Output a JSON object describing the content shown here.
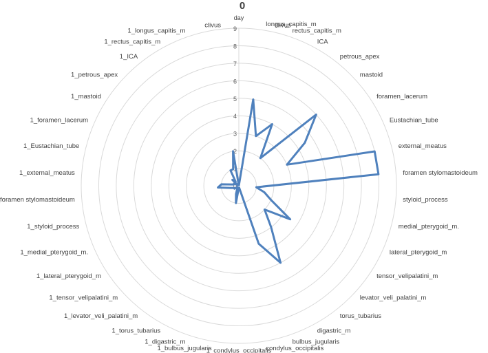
{
  "chart_data": {
    "type": "radar",
    "title": "0",
    "unit_label": "day",
    "rmax": 9,
    "ticks": [
      "0",
      "1",
      "2",
      "3",
      "4",
      "5",
      "6",
      "7",
      "8",
      "9"
    ],
    "categories": [
      "clivus",
      "longus_capitis_m",
      "rectus_capitis_m",
      "ICA",
      "petrous_apex",
      "mastoid",
      "foramen_lacerum",
      "Eustachian_tube",
      "external_meatus",
      "foramen stylomastoideum",
      "styloid_process",
      "medial_pterygoid_m.",
      "lateral_pterygoid_m",
      "tensor_velipalatini_m",
      "levator_veli_palatini_m",
      "torus_tubarius",
      "digastric_m",
      "bulbus_jugularis",
      "condylus_occipitalis",
      "1_condylus_occipitalis",
      "1_bulbus_jugularis",
      "1_digastric_m",
      "1_torus_tubarius",
      "1_levator_veli_palatini_m",
      "1_tensor_velipalatini_m",
      "1_lateral_pterygoid_m",
      "1_medial_pterygoid_m.",
      "1_styloid_process",
      "1_foramen stylomastoideum",
      "1_external_meatus",
      "1_Eustachian_tube",
      "1_foramen_lacerum",
      "1_mastoid",
      "1_petrous_apex",
      "1_ICA",
      "1_rectus_capitis_m",
      "1_longus_capitis_m",
      "clivus"
    ],
    "series": [
      {
        "values": [
          0,
          5,
          3,
          4,
          2,
          6,
          4.5,
          3,
          8,
          8,
          1,
          1.5,
          2,
          3.5,
          2,
          3,
          5,
          3.5,
          0.1,
          0.1,
          1,
          0.5,
          0.2,
          0.1,
          0.1,
          0.3,
          0.3,
          0.5,
          1.2,
          1,
          0.3,
          0.3,
          0.1,
          0.5,
          0.3,
          1,
          1,
          2
        ],
        "color": "#4f81bd"
      }
    ],
    "grid": true,
    "grid_color": "#d9d9d9"
  }
}
